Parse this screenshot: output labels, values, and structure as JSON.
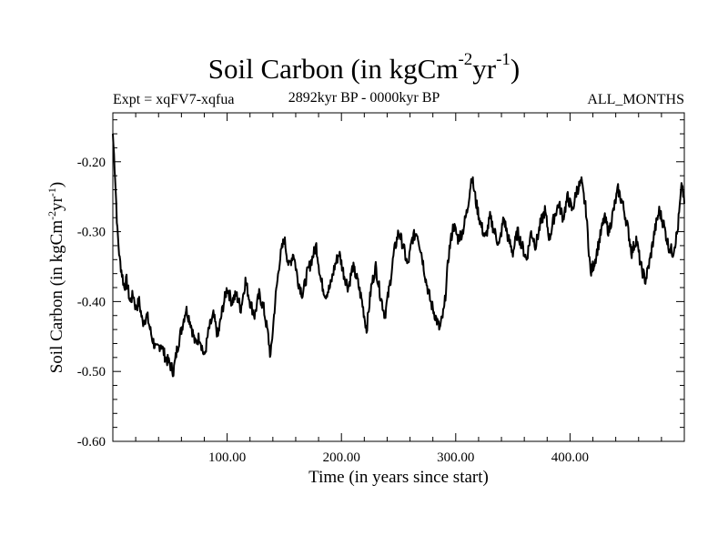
{
  "chart_data": {
    "type": "line",
    "title_main": "Soil Carbon (in kgCm",
    "title_exp1": "-2",
    "title_mid": "yr",
    "title_exp2": "-1",
    "title_end": ")",
    "expt_label": "Expt = xqFV7-xqfua",
    "period_label": "2892kyr BP - 0000kyr BP",
    "months_label": "ALL_MONTHS",
    "xlabel": "Time (in years since start)",
    "ylabel": "Soil Carbon (in kgCm-2yr-1)",
    "ylabel_main": "Soil Carbon (in kgCm",
    "ylabel_exp1": "-2",
    "ylabel_mid": "yr",
    "ylabel_exp2": "-1",
    "ylabel_end": ")",
    "xlim": [
      0,
      500
    ],
    "ylim": [
      -0.6,
      -0.13
    ],
    "x_ticks": [
      100,
      200,
      300,
      400
    ],
    "x_tick_labels": [
      "100.00",
      "200.00",
      "300.00",
      "400.00"
    ],
    "y_ticks": [
      -0.6,
      -0.5,
      -0.4,
      -0.3,
      -0.2
    ],
    "y_tick_labels": [
      "-0.60",
      "-0.50",
      "-0.40",
      "-0.30",
      "-0.20"
    ],
    "series": [
      {
        "name": "Soil Carbon",
        "color": "#000000",
        "x": [
          0,
          2,
          4,
          6,
          8,
          10,
          12,
          15,
          18,
          20,
          23,
          26,
          30,
          34,
          38,
          42,
          46,
          50,
          53,
          56,
          60,
          64,
          68,
          72,
          76,
          80,
          84,
          88,
          92,
          96,
          100,
          104,
          108,
          112,
          116,
          120,
          124,
          128,
          132,
          136,
          138,
          142,
          146,
          150,
          154,
          158,
          162,
          166,
          170,
          174,
          178,
          182,
          186,
          190,
          194,
          198,
          202,
          206,
          210,
          214,
          218,
          222,
          226,
          230,
          234,
          238,
          242,
          246,
          250,
          254,
          258,
          262,
          266,
          270,
          274,
          278,
          282,
          286,
          290,
          294,
          298,
          302,
          306,
          310,
          314,
          318,
          322,
          326,
          330,
          334,
          338,
          342,
          346,
          350,
          354,
          358,
          362,
          366,
          370,
          374,
          378,
          382,
          386,
          390,
          394,
          398,
          402,
          406,
          410,
          414,
          418,
          422,
          426,
          430,
          434,
          438,
          442,
          446,
          450,
          454,
          458,
          462,
          466,
          470,
          474,
          478,
          482,
          486,
          490,
          494,
          498,
          500
        ],
        "values": [
          -0.16,
          -0.22,
          -0.3,
          -0.34,
          -0.36,
          -0.38,
          -0.37,
          -0.4,
          -0.39,
          -0.41,
          -0.4,
          -0.43,
          -0.42,
          -0.45,
          -0.47,
          -0.46,
          -0.48,
          -0.49,
          -0.5,
          -0.47,
          -0.44,
          -0.41,
          -0.43,
          -0.46,
          -0.45,
          -0.48,
          -0.44,
          -0.42,
          -0.45,
          -0.41,
          -0.38,
          -0.4,
          -0.39,
          -0.41,
          -0.37,
          -0.4,
          -0.42,
          -0.39,
          -0.41,
          -0.45,
          -0.48,
          -0.4,
          -0.34,
          -0.31,
          -0.35,
          -0.33,
          -0.37,
          -0.39,
          -0.36,
          -0.34,
          -0.32,
          -0.37,
          -0.39,
          -0.38,
          -0.35,
          -0.33,
          -0.36,
          -0.38,
          -0.35,
          -0.37,
          -0.4,
          -0.44,
          -0.38,
          -0.35,
          -0.39,
          -0.42,
          -0.38,
          -0.33,
          -0.3,
          -0.32,
          -0.35,
          -0.31,
          -0.3,
          -0.33,
          -0.37,
          -0.4,
          -0.42,
          -0.44,
          -0.41,
          -0.33,
          -0.29,
          -0.31,
          -0.3,
          -0.27,
          -0.22,
          -0.26,
          -0.29,
          -0.31,
          -0.28,
          -0.3,
          -0.32,
          -0.28,
          -0.31,
          -0.33,
          -0.3,
          -0.32,
          -0.34,
          -0.3,
          -0.32,
          -0.29,
          -0.27,
          -0.31,
          -0.28,
          -0.26,
          -0.28,
          -0.25,
          -0.27,
          -0.24,
          -0.23,
          -0.27,
          -0.36,
          -0.34,
          -0.31,
          -0.28,
          -0.3,
          -0.27,
          -0.24,
          -0.26,
          -0.29,
          -0.33,
          -0.31,
          -0.35,
          -0.37,
          -0.34,
          -0.3,
          -0.27,
          -0.29,
          -0.32,
          -0.33,
          -0.3,
          -0.23,
          -0.26
        ]
      }
    ]
  }
}
